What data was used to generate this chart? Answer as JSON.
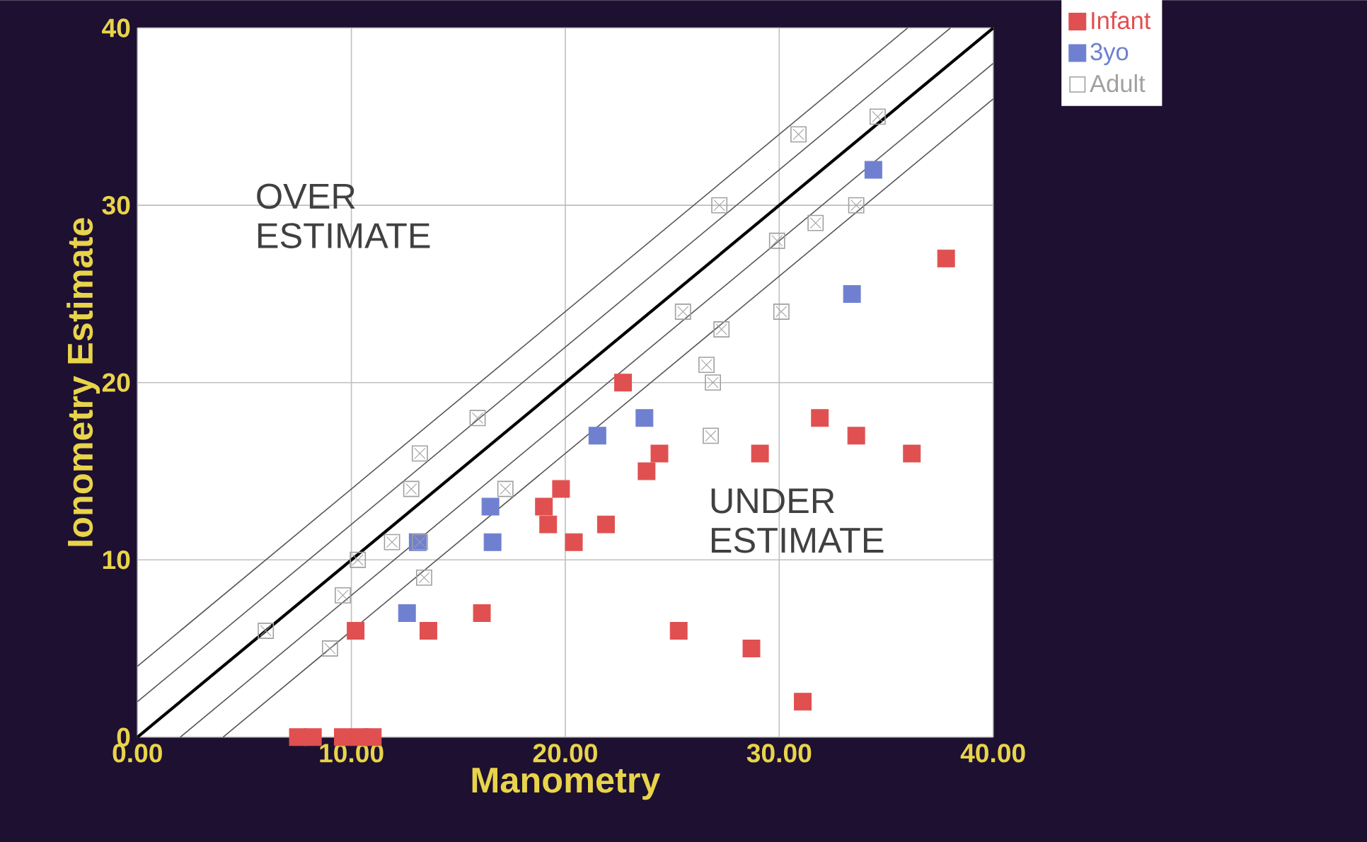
{
  "chart_data": {
    "type": "scatter",
    "xlabel": "Manometry",
    "ylabel": "Ionometry Estimate",
    "xlim": [
      0,
      40
    ],
    "ylim": [
      0,
      40
    ],
    "xticks": [
      {
        "value": 0,
        "label": "0.00"
      },
      {
        "value": 10,
        "label": "10.00"
      },
      {
        "value": 20,
        "label": "20.00"
      },
      {
        "value": 30,
        "label": "30.00"
      },
      {
        "value": 40,
        "label": "40.00"
      }
    ],
    "yticks": [
      0,
      10,
      20,
      30,
      40
    ],
    "grid": true,
    "legend": "top right",
    "annotations": [
      "OVER ESTIMATE",
      "UNDER ESTIMATE"
    ],
    "series": [
      {
        "name": "Infant",
        "color": "#e05050",
        "marker": "square",
        "x": [
          10.2,
          7.5,
          8.2,
          9.6,
          10.4,
          11.0,
          13.6,
          16.1,
          19.0,
          19.2,
          19.8,
          20.4,
          21.9,
          22.7,
          23.8,
          24.4,
          25.3,
          29.1,
          28.7,
          31.1,
          31.9,
          33.6,
          36.2,
          37.8
        ],
        "values": [
          6,
          0,
          0,
          0,
          0,
          0,
          6,
          7,
          13,
          12,
          14,
          11,
          12,
          20,
          15,
          16,
          6,
          16,
          5,
          2,
          18,
          17,
          16,
          27
        ]
      },
      {
        "name": "3yo",
        "color": "#7080d0",
        "marker": "square",
        "x": [
          12.6,
          13.1,
          16.5,
          16.6,
          21.5,
          23.7,
          33.4,
          34.4
        ],
        "values": [
          7,
          11,
          13,
          11,
          17,
          18,
          25,
          32
        ]
      },
      {
        "name": "Adult",
        "color": "#a0a0a0",
        "marker": "cross",
        "x": [
          6.0,
          9.0,
          9.6,
          10.3,
          11.9,
          13.2,
          13.4,
          12.8,
          13.2,
          15.9,
          17.2,
          25.5,
          26.6,
          26.9,
          27.3,
          26.8,
          27.2,
          29.9,
          30.1,
          31.7,
          33.6,
          30.9,
          34.6
        ],
        "values": [
          6,
          5,
          8,
          10,
          11,
          11,
          9,
          14,
          16,
          18,
          14,
          24,
          21,
          20,
          23,
          17,
          30,
          28,
          24,
          29,
          30,
          34,
          35
        ]
      },
      {
        "type": "line",
        "color": "#000000",
        "x": [
          0,
          40
        ],
        "values": [
          0,
          40
        ]
      },
      {
        "type": "line",
        "color": "#555555",
        "x": [
          0,
          38
        ],
        "values": [
          2,
          40
        ]
      },
      {
        "type": "line",
        "color": "#555555",
        "x": [
          0,
          36
        ],
        "values": [
          4,
          40
        ]
      },
      {
        "type": "line",
        "color": "#555555",
        "x": [
          2,
          40
        ],
        "values": [
          0,
          38
        ]
      },
      {
        "type": "line",
        "color": "#555555",
        "x": [
          4,
          40
        ],
        "values": [
          0,
          36
        ]
      }
    ]
  }
}
